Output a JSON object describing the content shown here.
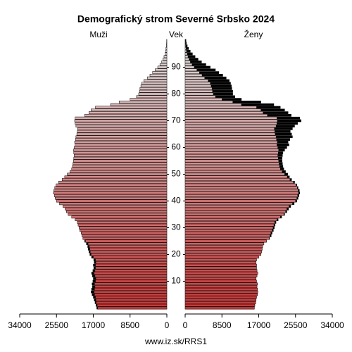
{
  "chart_data": {
    "type": "pyramid",
    "title": "Demografický strom Severné Srbsko 2024",
    "left_label": "Muži",
    "center_label": "Vek",
    "right_label": "Ženy",
    "source": "www.iz.sk/RRS1",
    "ages": [
      0,
      1,
      2,
      3,
      4,
      5,
      6,
      7,
      8,
      9,
      10,
      11,
      12,
      13,
      14,
      15,
      16,
      17,
      18,
      19,
      20,
      21,
      22,
      23,
      24,
      25,
      26,
      27,
      28,
      29,
      30,
      31,
      32,
      33,
      34,
      35,
      36,
      37,
      38,
      39,
      40,
      41,
      42,
      43,
      44,
      45,
      46,
      47,
      48,
      49,
      50,
      51,
      52,
      53,
      54,
      55,
      56,
      57,
      58,
      59,
      60,
      61,
      62,
      63,
      64,
      65,
      66,
      67,
      68,
      69,
      70,
      71,
      72,
      73,
      74,
      75,
      76,
      77,
      78,
      79,
      80,
      81,
      82,
      83,
      84,
      85,
      86,
      87,
      88,
      89,
      90,
      91,
      92,
      93,
      94,
      95,
      96,
      97,
      98,
      99,
      100
    ],
    "ylim": [
      0,
      100
    ],
    "yticks": [
      10,
      20,
      30,
      40,
      50,
      60,
      70,
      80,
      90
    ],
    "xlim": [
      0,
      34000
    ],
    "xticks_left": [
      {
        "value": 34000,
        "label": "34000"
      },
      {
        "value": 25500,
        "label": "25500"
      },
      {
        "value": 17000,
        "label": "17000"
      },
      {
        "value": 8500,
        "label": "8500"
      },
      {
        "value": 0,
        "label": "0"
      }
    ],
    "xticks_right": [
      {
        "value": 0,
        "label": "0"
      },
      {
        "value": 8500,
        "label": "8500"
      },
      {
        "value": 17000,
        "label": "17000"
      },
      {
        "value": 25500,
        "label": "25500"
      },
      {
        "value": 34000,
        "label": "34000"
      }
    ],
    "colors": [
      "#c83737",
      "#dcdcdc"
    ],
    "excess_color": "#000000",
    "series": [
      {
        "name": "Muži",
        "side": "left",
        "values": [
          16200,
          16400,
          16600,
          16800,
          17000,
          17300,
          17500,
          17400,
          17200,
          17300,
          17100,
          17000,
          17200,
          17400,
          17100,
          16900,
          17000,
          16800,
          16900,
          17400,
          17800,
          18000,
          18200,
          18300,
          18600,
          19000,
          19400,
          19600,
          19800,
          20100,
          20300,
          20500,
          20700,
          21200,
          22000,
          22800,
          23200,
          23500,
          24000,
          24800,
          25500,
          25800,
          26000,
          26200,
          26100,
          25900,
          25600,
          25000,
          24200,
          23600,
          23000,
          22400,
          22000,
          21800,
          21700,
          21600,
          21500,
          21400,
          21500,
          21600,
          21400,
          21200,
          21300,
          21100,
          21000,
          20800,
          20700,
          20600,
          21000,
          21200,
          21300,
          21200,
          19000,
          18000,
          17500,
          16500,
          13000,
          11000,
          8500,
          7000,
          6500,
          6300,
          6200,
          6000,
          5800,
          5300,
          4500,
          3900,
          3300,
          2700,
          2100,
          1600,
          1200,
          900,
          650,
          450,
          300,
          200,
          120,
          70,
          40
        ]
      },
      {
        "name": "Ženy",
        "side": "right",
        "values": [
          16000,
          16100,
          16300,
          16400,
          16500,
          16700,
          16800,
          16700,
          16600,
          16700,
          16500,
          16400,
          16600,
          16800,
          16600,
          16500,
          16500,
          16400,
          16500,
          17000,
          17500,
          17700,
          17800,
          17900,
          18200,
          18800,
          19500,
          19900,
          20100,
          20400,
          20600,
          20800,
          21000,
          21500,
          22300,
          23000,
          23500,
          23900,
          24400,
          25200,
          25800,
          26100,
          26300,
          26500,
          26400,
          26100,
          25800,
          25300,
          24600,
          24100,
          23700,
          23200,
          22800,
          22600,
          22500,
          22400,
          22400,
          22500,
          22600,
          23000,
          23500,
          24000,
          23800,
          24200,
          24800,
          24600,
          24300,
          24800,
          25300,
          26000,
          26800,
          26500,
          24500,
          23800,
          23000,
          22000,
          20500,
          17500,
          13000,
          11500,
          11000,
          11000,
          10800,
          10700,
          10500,
          10200,
          9500,
          8700,
          7800,
          7000,
          5800,
          4800,
          3800,
          3000,
          2300,
          1700,
          1200,
          800,
          500,
          300,
          200
        ]
      }
    ]
  }
}
